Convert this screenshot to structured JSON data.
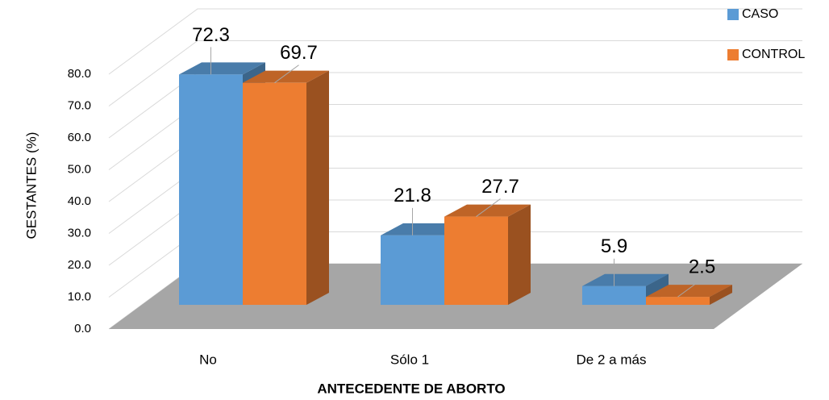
{
  "chart_data": {
    "type": "bar3d",
    "xlabel": "ANTECEDENTE DE ABORTO",
    "ylabel": "GESTANTES (%)",
    "categories": [
      "No",
      "Sólo 1",
      "De 2 a más"
    ],
    "series": [
      {
        "name": "CASO",
        "color": "#5b9bd5",
        "values": [
          72.3,
          21.8,
          5.9
        ]
      },
      {
        "name": "CONTROL",
        "color": "#ed7d31",
        "values": [
          69.7,
          27.7,
          2.5
        ]
      }
    ],
    "ylim": [
      0,
      100
    ],
    "yticks": [
      {
        "value": 0,
        "label": "0.0"
      },
      {
        "value": 10,
        "label": "10.0"
      },
      {
        "value": 20,
        "label": "20.0"
      },
      {
        "value": 30,
        "label": "30.0"
      },
      {
        "value": 40,
        "label": "40.0"
      },
      {
        "value": 50,
        "label": "50.0"
      },
      {
        "value": 60,
        "label": "60.0"
      },
      {
        "value": 70,
        "label": "70.0"
      },
      {
        "value": 80,
        "label": "80.0"
      }
    ],
    "grid": true,
    "legend": "top-right"
  }
}
